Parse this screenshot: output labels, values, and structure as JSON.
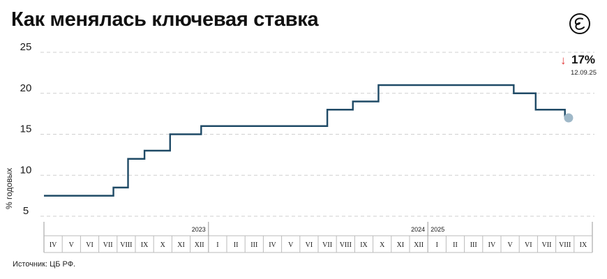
{
  "header": {
    "title": "Как менялась ключевая ставка",
    "logo_icon": "publisher-logo-icon"
  },
  "source": "Источник: ЦБ РФ.",
  "callout": {
    "arrow": "↓",
    "value": "17%",
    "date": "12.09.25",
    "arrow_color": "#e23b3b"
  },
  "colors": {
    "line": "#1f4a66",
    "marker": "#9fb8c8",
    "grid": "#cfcfcf",
    "text": "#1a1a1a"
  },
  "chart_data": {
    "type": "line",
    "step": true,
    "xlabel": "",
    "ylabel": "% годовых",
    "ylim": [
      5,
      25
    ],
    "yticks": [
      5,
      10,
      15,
      20,
      25
    ],
    "grid": true,
    "months": [
      "IV",
      "V",
      "VI",
      "VII",
      "VIII",
      "IX",
      "X",
      "XI",
      "XII",
      "I",
      "II",
      "III",
      "IV",
      "V",
      "VI",
      "VII",
      "VIII",
      "IX",
      "X",
      "XI",
      "XII",
      "I",
      "II",
      "III",
      "IV",
      "V",
      "VI",
      "VII",
      "VIII",
      "IX"
    ],
    "years": [
      {
        "label": "2023",
        "start_index": 0
      },
      {
        "label": "2024",
        "start_index": 9
      },
      {
        "label": "2025",
        "start_index": 21
      }
    ],
    "series": [
      {
        "points": [
          {
            "x": 0.0,
            "y": 7.5
          },
          {
            "x": 3.8,
            "y": 8.5
          },
          {
            "x": 4.6,
            "y": 12
          },
          {
            "x": 5.5,
            "y": 13
          },
          {
            "x": 6.9,
            "y": 15
          },
          {
            "x": 8.6,
            "y": 16
          },
          {
            "x": 15.5,
            "y": 18
          },
          {
            "x": 16.9,
            "y": 19
          },
          {
            "x": 18.3,
            "y": 21
          },
          {
            "x": 25.7,
            "y": 20
          },
          {
            "x": 26.9,
            "y": 18
          },
          {
            "x": 28.5,
            "y": 17
          }
        ],
        "end_x": 28.7
      }
    ]
  }
}
